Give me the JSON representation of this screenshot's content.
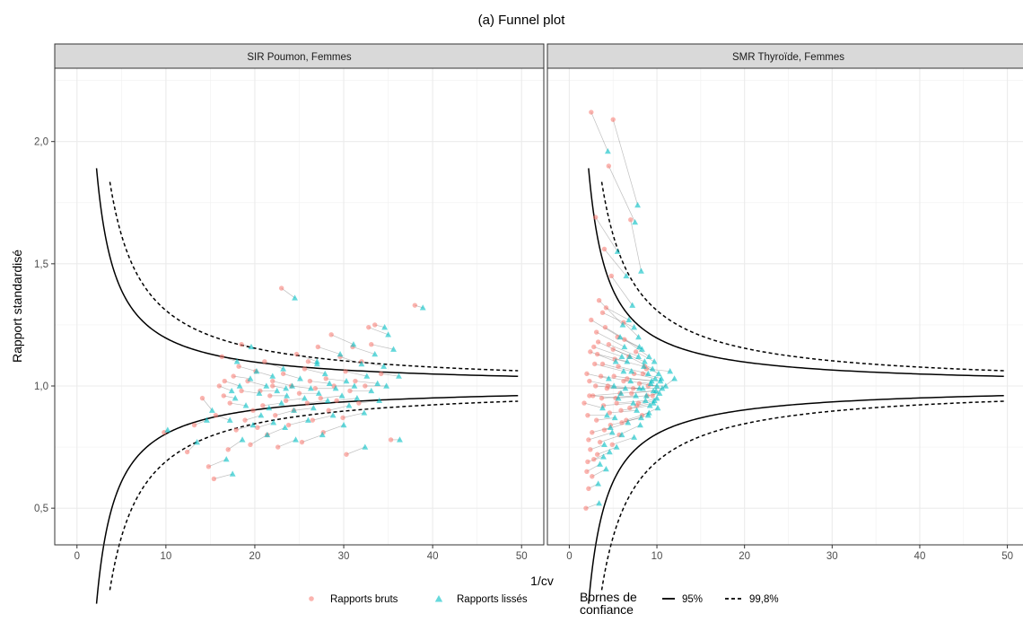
{
  "chart_data": {
    "type": "scatter",
    "title": "(a) Funnel plot",
    "xlabel": "1/cv",
    "ylabel": "Rapport standardisé",
    "x_ticks": [
      0,
      10,
      20,
      30,
      40,
      50
    ],
    "x_tick_labels": [
      "0",
      "10",
      "20",
      "30",
      "40",
      "50"
    ],
    "y_ticks": [
      0.5,
      1.0,
      1.5,
      2.0
    ],
    "y_tick_labels": [
      "0,5",
      "1,0",
      "1,5",
      "2,0"
    ],
    "xlim": [
      -2.5,
      52.5
    ],
    "ylim": [
      0.35,
      2.3
    ],
    "grid": true,
    "legend_position": "bottom",
    "legend": {
      "points_raw": "Rapports bruts",
      "points_smooth": "Rapports lissés",
      "bounds_title_line1": "Bornes de",
      "bounds_title_line2": "confiance",
      "bound_95": "95%",
      "bound_998": "99,8%"
    },
    "colors": {
      "raw": "#F8766D",
      "smoothed": "#00BFC4"
    },
    "funnel_bounds": {
      "z95": 1.96,
      "z998": 3.09,
      "x_start_95": 2.2,
      "x_start_998": 3.7,
      "x_end": 49.6
    },
    "panels": [
      {
        "strip": "SIR Poumon, Femmes",
        "pairs": [
          [
            9.8,
            0.81,
            10.2,
            0.82
          ],
          [
            12.4,
            0.73,
            13.5,
            0.77
          ],
          [
            13.2,
            0.84,
            14.6,
            0.86
          ],
          [
            14.1,
            0.95,
            15.2,
            0.9
          ],
          [
            14.8,
            0.67,
            16.8,
            0.7
          ],
          [
            15.4,
            0.62,
            17.5,
            0.64
          ],
          [
            15.6,
            0.88,
            17.2,
            0.86
          ],
          [
            16.0,
            1.0,
            17.4,
            0.98
          ],
          [
            16.3,
            1.12,
            18.0,
            1.1
          ],
          [
            16.6,
            1.02,
            18.3,
            1.0
          ],
          [
            17.0,
            0.74,
            18.6,
            0.78
          ],
          [
            17.2,
            0.93,
            19.0,
            0.92
          ],
          [
            17.6,
            1.04,
            19.5,
            1.03
          ],
          [
            17.9,
            0.82,
            19.8,
            0.84
          ],
          [
            18.2,
            1.08,
            20.2,
            1.06
          ],
          [
            18.5,
            0.98,
            20.5,
            0.97
          ],
          [
            18.9,
            0.86,
            20.7,
            0.88
          ],
          [
            19.2,
            1.02,
            21.3,
            1.0
          ],
          [
            19.5,
            0.76,
            21.4,
            0.8
          ],
          [
            19.8,
            0.9,
            21.6,
            0.91
          ],
          [
            20.1,
            1.06,
            22.0,
            1.04
          ],
          [
            20.3,
            0.83,
            22.1,
            0.85
          ],
          [
            20.6,
            0.98,
            22.5,
            0.98
          ],
          [
            20.9,
            0.92,
            23.0,
            0.93
          ],
          [
            21.1,
            1.1,
            23.2,
            1.07
          ],
          [
            21.4,
            0.8,
            23.4,
            0.83
          ],
          [
            21.7,
            0.96,
            23.6,
            0.96
          ],
          [
            22.0,
            1.02,
            24.2,
            1.0
          ],
          [
            22.3,
            0.88,
            24.4,
            0.9
          ],
          [
            22.6,
            0.75,
            24.6,
            0.78
          ],
          [
            23.0,
            1.4,
            24.5,
            1.36
          ],
          [
            23.2,
            1.05,
            25.1,
            1.03
          ],
          [
            23.5,
            0.94,
            25.6,
            0.95
          ],
          [
            23.8,
            0.84,
            26.0,
            0.86
          ],
          [
            24.1,
            1.0,
            26.3,
            0.99
          ],
          [
            24.4,
            0.9,
            26.6,
            0.91
          ],
          [
            24.7,
            1.13,
            27.0,
            1.1
          ],
          [
            25.0,
            0.97,
            27.2,
            0.97
          ],
          [
            25.3,
            0.77,
            27.6,
            0.8
          ],
          [
            25.6,
            1.07,
            27.9,
            1.05
          ],
          [
            25.9,
            0.93,
            28.2,
            0.94
          ],
          [
            26.2,
            1.02,
            28.4,
            1.01
          ],
          [
            26.5,
            0.86,
            28.8,
            0.88
          ],
          [
            26.8,
            0.99,
            29.1,
            0.99
          ],
          [
            27.1,
            1.16,
            29.6,
            1.13
          ],
          [
            27.4,
            0.95,
            29.8,
            0.96
          ],
          [
            27.7,
            0.81,
            30.0,
            0.84
          ],
          [
            28.0,
            1.03,
            30.3,
            1.02
          ],
          [
            28.3,
            0.9,
            30.6,
            0.92
          ],
          [
            28.6,
            1.21,
            31.1,
            1.17
          ],
          [
            28.9,
            1.0,
            31.2,
            1.0
          ],
          [
            29.2,
            0.94,
            31.5,
            0.95
          ],
          [
            29.6,
            1.12,
            32.0,
            1.09
          ],
          [
            29.9,
            0.87,
            32.3,
            0.89
          ],
          [
            30.2,
            1.06,
            32.6,
            1.04
          ],
          [
            30.3,
            0.72,
            32.4,
            0.75
          ],
          [
            30.7,
            0.98,
            33.1,
            0.98
          ],
          [
            31.0,
            1.16,
            33.5,
            1.13
          ],
          [
            31.3,
            1.02,
            33.8,
            1.01
          ],
          [
            31.7,
            0.93,
            34.0,
            0.94
          ],
          [
            32.0,
            1.1,
            34.5,
            1.08
          ],
          [
            32.4,
            1.0,
            34.8,
            1.0
          ],
          [
            32.8,
            1.24,
            35.0,
            1.21
          ],
          [
            33.1,
            1.17,
            35.6,
            1.15
          ],
          [
            33.5,
            1.25,
            34.6,
            1.24
          ],
          [
            34.2,
            1.05,
            36.2,
            1.04
          ],
          [
            35.3,
            0.78,
            36.3,
            0.78
          ],
          [
            38.0,
            1.33,
            38.9,
            1.32
          ],
          [
            18.5,
            1.17,
            19.6,
            1.16
          ],
          [
            22.0,
            1.0,
            23.5,
            0.99
          ],
          [
            16.5,
            0.96,
            17.8,
            0.95
          ],
          [
            26.0,
            1.1,
            27.0,
            1.09
          ]
        ]
      },
      {
        "strip": "SMR Thyroïde, Femmes",
        "pairs": [
          [
            1.9,
            0.5,
            3.4,
            0.52
          ],
          [
            2.5,
            2.12,
            4.4,
            1.96
          ],
          [
            3.0,
            1.69,
            5.5,
            1.55
          ],
          [
            4.0,
            1.56,
            6.5,
            1.45
          ],
          [
            4.5,
            1.9,
            7.5,
            1.67
          ],
          [
            5.0,
            2.09,
            7.8,
            1.74
          ],
          [
            7.0,
            1.68,
            8.2,
            1.47
          ],
          [
            4.2,
            1.32,
            6.8,
            1.27
          ],
          [
            5.5,
            1.2,
            8.0,
            1.16
          ],
          [
            6.2,
            1.26,
            7.9,
            1.2
          ],
          [
            3.2,
            1.13,
            6.6,
            1.1
          ],
          [
            3.8,
            1.3,
            7.4,
            1.24
          ],
          [
            1.7,
            0.93,
            3.8,
            0.91
          ],
          [
            2.2,
            0.58,
            3.3,
            0.6
          ],
          [
            2.8,
            0.7,
            4.6,
            0.73
          ],
          [
            2.0,
            0.65,
            3.5,
            0.68
          ],
          [
            2.4,
            0.74,
            4.0,
            0.76
          ],
          [
            2.6,
            0.81,
            4.7,
            0.83
          ],
          [
            3.1,
            0.86,
            5.2,
            0.87
          ],
          [
            3.5,
            0.77,
            6.0,
            0.8
          ],
          [
            2.1,
            0.88,
            4.3,
            0.88
          ],
          [
            2.3,
            1.02,
            5.1,
            1.0
          ],
          [
            2.7,
            0.96,
            5.6,
            0.95
          ],
          [
            2.9,
            1.09,
            6.2,
            1.06
          ],
          [
            3.3,
            1.18,
            6.9,
            1.12
          ],
          [
            3.6,
            1.04,
            7.0,
            1.02
          ],
          [
            3.9,
            0.92,
            7.3,
            0.93
          ],
          [
            4.1,
            1.24,
            8.3,
            1.15
          ],
          [
            4.4,
            1.0,
            8.0,
            0.99
          ],
          [
            4.7,
            0.84,
            8.2,
            0.87
          ],
          [
            5.0,
            1.15,
            8.6,
            1.1
          ],
          [
            5.3,
            0.95,
            8.8,
            0.96
          ],
          [
            5.6,
            1.08,
            9.0,
            1.05
          ],
          [
            5.9,
            0.9,
            9.2,
            0.92
          ],
          [
            6.2,
            1.02,
            9.3,
            1.01
          ],
          [
            6.5,
            0.86,
            9.1,
            0.89
          ],
          [
            6.8,
            1.12,
            9.5,
            1.07
          ],
          [
            7.1,
            0.97,
            9.6,
            0.98
          ],
          [
            7.4,
            1.05,
            9.8,
            1.03
          ],
          [
            7.7,
            0.92,
            9.7,
            0.94
          ],
          [
            8.0,
            1.01,
            10.0,
            1.0
          ],
          [
            8.3,
            0.88,
            10.1,
            0.91
          ],
          [
            8.6,
            1.08,
            10.2,
            1.05
          ],
          [
            8.9,
            0.96,
            10.3,
            0.97
          ],
          [
            2.5,
            1.27,
            5.8,
            1.2
          ],
          [
            3.4,
            1.35,
            6.1,
            1.25
          ],
          [
            4.8,
            1.45,
            7.2,
            1.33
          ],
          [
            2.2,
            0.78,
            4.9,
            0.81
          ],
          [
            3.0,
            1.0,
            6.4,
            0.99
          ],
          [
            3.7,
            0.95,
            7.6,
            0.96
          ],
          [
            4.3,
            0.99,
            8.4,
            0.99
          ],
          [
            5.1,
            1.04,
            9.4,
            1.02
          ],
          [
            5.8,
            0.97,
            9.9,
            0.98
          ],
          [
            6.6,
            1.03,
            10.4,
            1.02
          ],
          [
            7.3,
            0.99,
            10.6,
            0.99
          ],
          [
            2.6,
            0.63,
            4.2,
            0.66
          ],
          [
            3.2,
            0.72,
            5.4,
            0.75
          ],
          [
            4.0,
            0.82,
            6.7,
            0.85
          ],
          [
            4.6,
            0.89,
            7.7,
            0.9
          ],
          [
            5.4,
            0.93,
            8.7,
            0.94
          ],
          [
            6.0,
            0.85,
            9.0,
            0.88
          ],
          [
            6.9,
            0.91,
            9.6,
            0.93
          ],
          [
            2.0,
            1.05,
            4.5,
            1.03
          ],
          [
            2.4,
            1.14,
            5.3,
            1.1
          ],
          [
            3.1,
            1.22,
            6.3,
            1.16
          ],
          [
            3.8,
            1.09,
            7.1,
            1.06
          ],
          [
            4.5,
            1.17,
            7.9,
            1.12
          ],
          [
            5.2,
            1.11,
            8.5,
            1.08
          ],
          [
            6.3,
            1.19,
            9.1,
            1.12
          ],
          [
            7.6,
            1.14,
            9.7,
            1.1
          ],
          [
            8.4,
            1.05,
            10.5,
            1.03
          ],
          [
            9.0,
            1.0,
            11.0,
            1.0
          ],
          [
            9.5,
            0.96,
            12.0,
            1.03
          ],
          [
            8.8,
            1.07,
            11.5,
            1.06
          ],
          [
            2.3,
            0.96,
            5.9,
            0.97
          ],
          [
            2.8,
            1.16,
            6.0,
            1.12
          ],
          [
            5.7,
            0.8,
            8.1,
            0.84
          ],
          [
            7.9,
            0.93,
            10.0,
            0.95
          ],
          [
            4.9,
            0.76,
            7.4,
            0.79
          ],
          [
            2.1,
            0.69,
            3.9,
            0.71
          ]
        ]
      }
    ]
  }
}
